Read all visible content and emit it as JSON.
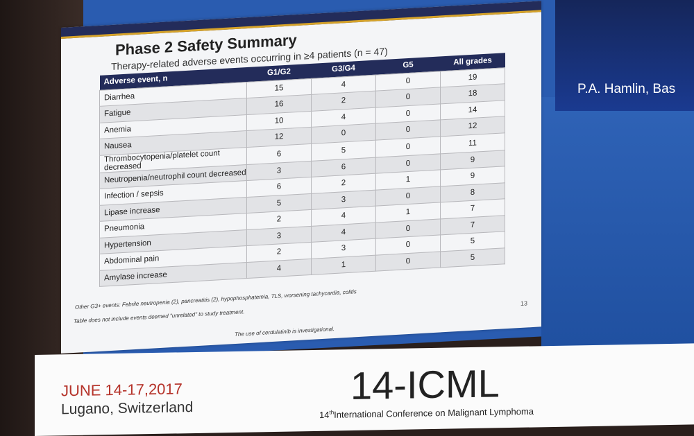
{
  "slide": {
    "title": "Phase 2 Safety Summary",
    "subtitle": "Therapy-related adverse events occurring in ≥4 patients (n = 47)",
    "columns": [
      "Adverse event, n",
      "G1/G2",
      "G3/G4",
      "G5",
      "All grades"
    ],
    "rows": [
      [
        "Diarrhea",
        "15",
        "4",
        "0",
        "19"
      ],
      [
        "Fatigue",
        "16",
        "2",
        "0",
        "18"
      ],
      [
        "Anemia",
        "10",
        "4",
        "0",
        "14"
      ],
      [
        "Nausea",
        "12",
        "0",
        "0",
        "12"
      ],
      [
        "Thrombocytopenia/platelet count decreased",
        "6",
        "5",
        "0",
        "11"
      ],
      [
        "Neutropenia/neutrophil count decreased",
        "3",
        "6",
        "0",
        "9"
      ],
      [
        "Infection / sepsis",
        "6",
        "2",
        "1",
        "9"
      ],
      [
        "Lipase increase",
        "5",
        "3",
        "0",
        "8"
      ],
      [
        "Pneumonia",
        "2",
        "4",
        "1",
        "7"
      ],
      [
        "Hypertension",
        "3",
        "4",
        "0",
        "7"
      ],
      [
        "Abdominal pain",
        "2",
        "3",
        "0",
        "5"
      ],
      [
        "Amylase increase",
        "4",
        "1",
        "0",
        "5"
      ]
    ],
    "note1": "Other G3+ events: Febrile neutropenia (2), pancreatitis (2), hypophosphatemia, TLS, worsening tachycardia, colitis",
    "note2": "Table does not include events deemed \"unrelated\" to study treatment.",
    "disclaimer": "The use of cerdulatinib is investigational.",
    "page": "13"
  },
  "speaker": "P.A. Hamlin, Bas",
  "banner": {
    "date": "JUNE 14-17,2017",
    "location": "Lugano, Switzerland",
    "conference": "14-ICML",
    "sub_num": "14",
    "sub_sup": "th",
    "sub_text": "International Conference on Malignant Lymphoma"
  }
}
